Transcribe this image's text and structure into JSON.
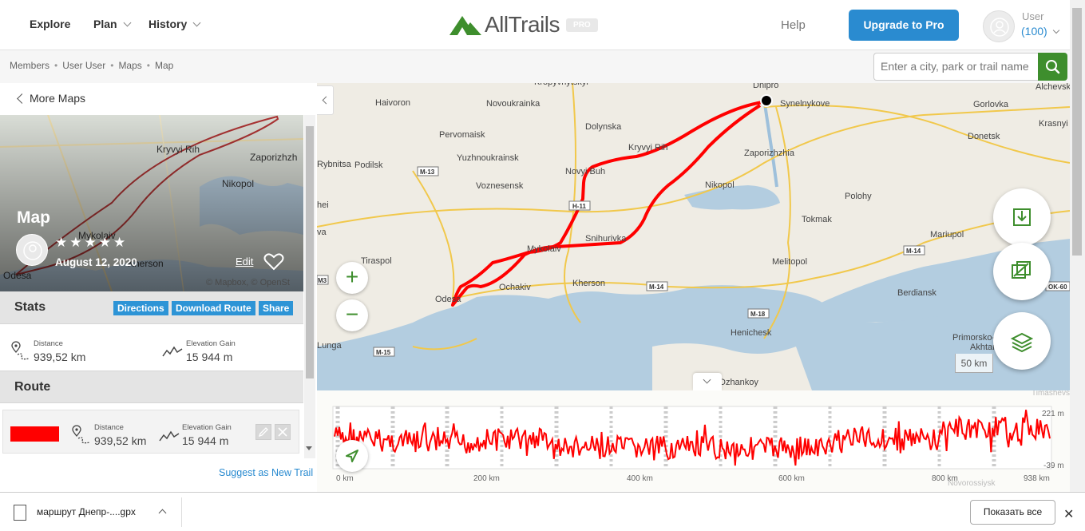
{
  "nav": {
    "explore": "Explore",
    "plan": "Plan",
    "history": "History",
    "logo_text": "AllTrails",
    "logo_badge": "PRO",
    "help": "Help",
    "upgrade": "Upgrade to Pro",
    "user_name": "User",
    "user_count": "(100)",
    "brand_green": "#3e8e2d",
    "accent_blue": "#2a8bd0"
  },
  "breadcrumb": [
    "Members",
    "User User",
    "Maps",
    "Map"
  ],
  "search": {
    "placeholder": "Enter a city, park or trail name"
  },
  "panel": {
    "more_maps": "More Maps",
    "title": "Map",
    "rating_stars": "★★★★★",
    "rating_value": 0,
    "date": "August 12, 2020",
    "edit": "Edit",
    "credit": "© Mapbox, © OpenSt",
    "hero_places": [
      "Kryvyi Rih",
      "Zaporizhzh",
      "Nikopol",
      "Mykolaiv",
      "Kherson",
      "Odesa"
    ],
    "stats_title": "Stats",
    "buttons": {
      "directions": "Directions",
      "download": "Download Route",
      "share": "Share"
    },
    "distance_label": "Distance",
    "distance_value": "939,52 km",
    "elevation_label": "Elevation Gain",
    "elevation_value": "15 944 m",
    "route_title": "Route",
    "route_color": "#ff0000",
    "route_distance_label": "Distance",
    "route_distance_value": "939,52 km",
    "route_elevation_label": "Elevation Gain",
    "route_elevation_value": "15 944 m",
    "suggest": "Suggest as New Trail"
  },
  "map": {
    "places": [
      "Kropyvnytskyi",
      "Dnipro",
      "Synelnykove",
      "Alchevsk",
      "Haivoron",
      "Novoukrainka",
      "Dolynska",
      "Gorlovka",
      "Krasnyi Luch",
      "Pervomaisk",
      "Kryvyi Rih",
      "Zaporizhzhia",
      "Donetsk",
      "Yuzhnoukrainsk",
      "Rybnitsa",
      "Podilsk",
      "Novyi Buh",
      "Voznesensk",
      "Nikopol",
      "Polohy",
      "Tokmak",
      "Mariupol",
      "Snihurivka",
      "Mykolaiv",
      "Tiraspol",
      "Ochakiv",
      "Kherson",
      "Melitopol",
      "Berdiansk",
      "Odesa",
      "Henichesk",
      "Primorsko-Akhtarsk",
      "Dzhankoy",
      "Lunga",
      "hei",
      "va"
    ],
    "roads": [
      "M-13",
      "H-11",
      "M-14",
      "M-14",
      "M-18",
      "M-15",
      "M3",
      "OK-60"
    ],
    "scale": "50 km",
    "zoom_in": "+",
    "zoom_out": "−"
  },
  "elevation": {
    "x_labels": [
      "0 km",
      "200 km",
      "400 km",
      "600 km",
      "800 km",
      "938 km"
    ],
    "y_labels": [
      "221 m",
      "-39 m"
    ],
    "top_right_place": "Timashevsk",
    "bottom_place": "Novorossiysk"
  },
  "download_bar": {
    "filename": "маршрут Днепр-....gpx",
    "show_all": "Показать все",
    "close": "✕"
  }
}
